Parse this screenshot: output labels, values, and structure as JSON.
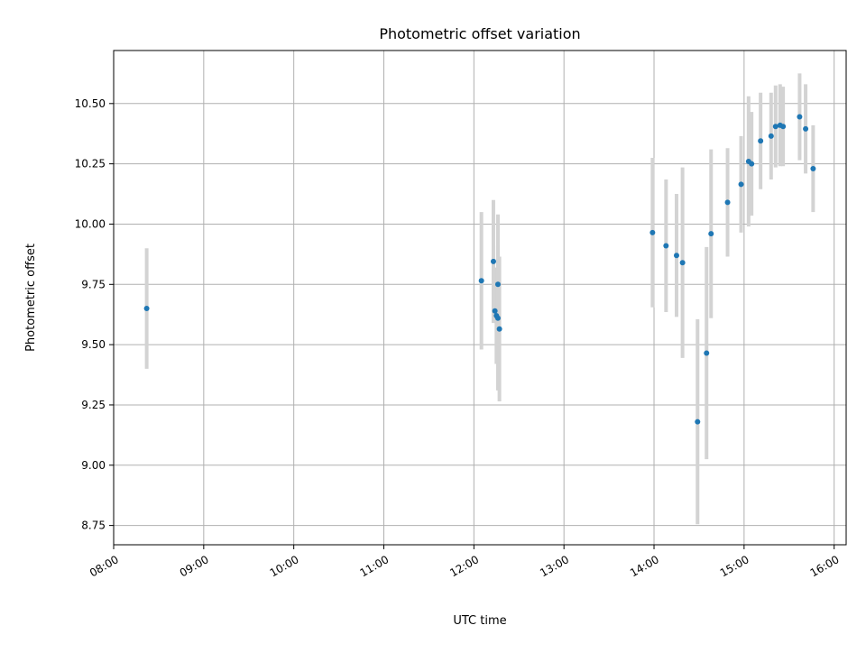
{
  "chart_data": {
    "type": "scatter",
    "title": "Photometric offset variation",
    "xlabel": "UTC time",
    "ylabel": "Photometric offset",
    "x_ticks": [
      "08:00",
      "09:00",
      "10:00",
      "11:00",
      "12:00",
      "13:00",
      "14:00",
      "15:00",
      "16:00"
    ],
    "y_ticks": [
      "8.75",
      "9.00",
      "9.25",
      "9.50",
      "9.75",
      "10.00",
      "10.25",
      "10.50"
    ],
    "xlim": [
      "08:00",
      "16:08"
    ],
    "ylim": [
      8.67,
      10.72
    ],
    "grid": true,
    "colors": {
      "points": "#1f77b4",
      "error_bars": "#d3d3d3",
      "grid": "#b0b0b0",
      "axes": "#000000"
    },
    "series": [
      {
        "points": [
          {
            "x": "08:22",
            "y": 9.65,
            "yerr": 0.25
          },
          {
            "x": "12:05",
            "y": 9.765,
            "yerr": 0.285
          },
          {
            "x": "12:13",
            "y": 9.845,
            "yerr": 0.255
          },
          {
            "x": "12:14",
            "y": 9.64,
            "yerr": 0.05
          },
          {
            "x": "12:15",
            "y": 9.62,
            "yerr": 0.2
          },
          {
            "x": "12:16",
            "y": 9.75,
            "yerr": 0.29
          },
          {
            "x": "12:16",
            "y": 9.61,
            "yerr": 0.3
          },
          {
            "x": "12:17",
            "y": 9.565,
            "yerr": 0.3
          },
          {
            "x": "13:59",
            "y": 9.965,
            "yerr": 0.31
          },
          {
            "x": "14:08",
            "y": 9.91,
            "yerr": 0.275
          },
          {
            "x": "14:15",
            "y": 9.87,
            "yerr": 0.255
          },
          {
            "x": "14:19",
            "y": 9.84,
            "yerr": 0.395
          },
          {
            "x": "14:29",
            "y": 9.18,
            "yerr": 0.425
          },
          {
            "x": "14:35",
            "y": 9.465,
            "yerr": 0.44
          },
          {
            "x": "14:38",
            "y": 9.96,
            "yerr": 0.35
          },
          {
            "x": "14:49",
            "y": 10.09,
            "yerr": 0.225
          },
          {
            "x": "14:58",
            "y": 10.165,
            "yerr": 0.2
          },
          {
            "x": "15:03",
            "y": 10.26,
            "yerr": 0.27
          },
          {
            "x": "15:05",
            "y": 10.25,
            "yerr": 0.215
          },
          {
            "x": "15:11",
            "y": 10.345,
            "yerr": 0.2
          },
          {
            "x": "15:18",
            "y": 10.365,
            "yerr": 0.18
          },
          {
            "x": "15:21",
            "y": 10.405,
            "yerr": 0.17
          },
          {
            "x": "15:24",
            "y": 10.41,
            "yerr": 0.17
          },
          {
            "x": "15:26",
            "y": 10.405,
            "yerr": 0.165
          },
          {
            "x": "15:37",
            "y": 10.445,
            "yerr": 0.18
          },
          {
            "x": "15:41",
            "y": 10.395,
            "yerr": 0.185
          },
          {
            "x": "15:46",
            "y": 10.23,
            "yerr": 0.18
          }
        ]
      }
    ]
  }
}
